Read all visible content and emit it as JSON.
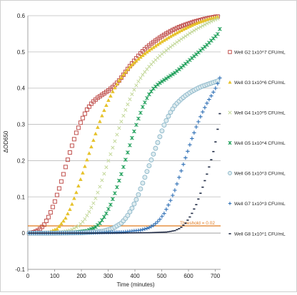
{
  "chart_data": {
    "type": "scatter",
    "title": "",
    "xlabel": "Time (minutes)",
    "ylabel": "ΔOD650",
    "xlim": [
      0,
      720
    ],
    "ylim": [
      -0.1,
      0.6
    ],
    "xticks": [
      "0",
      "100",
      "200",
      "300",
      "400",
      "500",
      "600",
      "700"
    ],
    "yticks": [
      "-0.1",
      "0",
      "0.1",
      "0.2",
      "0.3",
      "0.4",
      "0.5",
      "0.6"
    ],
    "grid": "horizontal",
    "legend_position": "right",
    "threshold": {
      "value": 0.02,
      "label": "Threshold = 0.02",
      "color": "#e07a1f"
    },
    "series": [
      {
        "name": "Well G2 1x10^7 CFU/mL",
        "color": "#c0504d",
        "marker": "square",
        "points": [
          [
            5,
            0.0
          ],
          [
            20,
            0.002
          ],
          [
            40,
            0.008
          ],
          [
            60,
            0.022
          ],
          [
            80,
            0.048
          ],
          [
            100,
            0.085
          ],
          [
            120,
            0.13
          ],
          [
            140,
            0.18
          ],
          [
            160,
            0.23
          ],
          [
            180,
            0.275
          ],
          [
            200,
            0.31
          ],
          [
            220,
            0.34
          ],
          [
            240,
            0.36
          ],
          [
            260,
            0.373
          ],
          [
            280,
            0.383
          ],
          [
            300,
            0.393
          ],
          [
            320,
            0.405
          ],
          [
            340,
            0.42
          ],
          [
            360,
            0.44
          ],
          [
            380,
            0.46
          ],
          [
            400,
            0.478
          ],
          [
            420,
            0.495
          ],
          [
            440,
            0.51
          ],
          [
            460,
            0.522
          ],
          [
            480,
            0.533
          ],
          [
            500,
            0.543
          ],
          [
            520,
            0.552
          ],
          [
            540,
            0.56
          ],
          [
            560,
            0.567
          ],
          [
            580,
            0.573
          ],
          [
            600,
            0.578
          ],
          [
            620,
            0.583
          ],
          [
            640,
            0.587
          ],
          [
            660,
            0.591
          ],
          [
            680,
            0.594
          ],
          [
            700,
            0.597
          ],
          [
            715,
            0.598
          ]
        ]
      },
      {
        "name": "Well G3 1x10^6 CFU/mL",
        "color": "#e6c229",
        "marker": "triangle",
        "points": [
          [
            5,
            0.0
          ],
          [
            40,
            0.0
          ],
          [
            80,
            0.003
          ],
          [
            110,
            0.012
          ],
          [
            140,
            0.04
          ],
          [
            160,
            0.07
          ],
          [
            180,
            0.11
          ],
          [
            200,
            0.155
          ],
          [
            220,
            0.2
          ],
          [
            240,
            0.245
          ],
          [
            260,
            0.29
          ],
          [
            280,
            0.33
          ],
          [
            300,
            0.365
          ],
          [
            320,
            0.395
          ],
          [
            340,
            0.42
          ],
          [
            360,
            0.44
          ],
          [
            380,
            0.458
          ],
          [
            400,
            0.472
          ],
          [
            420,
            0.485
          ],
          [
            440,
            0.497
          ],
          [
            460,
            0.508
          ],
          [
            480,
            0.518
          ],
          [
            500,
            0.528
          ],
          [
            520,
            0.537
          ],
          [
            540,
            0.546
          ],
          [
            560,
            0.554
          ],
          [
            580,
            0.562
          ],
          [
            600,
            0.569
          ],
          [
            620,
            0.576
          ],
          [
            640,
            0.582
          ],
          [
            660,
            0.587
          ],
          [
            680,
            0.592
          ],
          [
            700,
            0.595
          ],
          [
            715,
            0.598
          ]
        ]
      },
      {
        "name": "Well G4 1x10^5 CFU/mL",
        "color": "#c4d89b",
        "marker": "x",
        "points": [
          [
            5,
            0.0
          ],
          [
            60,
            0.0
          ],
          [
            120,
            0.002
          ],
          [
            160,
            0.008
          ],
          [
            190,
            0.02
          ],
          [
            210,
            0.035
          ],
          [
            230,
            0.06
          ],
          [
            250,
            0.09
          ],
          [
            270,
            0.13
          ],
          [
            290,
            0.175
          ],
          [
            310,
            0.22
          ],
          [
            330,
            0.265
          ],
          [
            350,
            0.31
          ],
          [
            370,
            0.35
          ],
          [
            390,
            0.385
          ],
          [
            410,
            0.415
          ],
          [
            430,
            0.438
          ],
          [
            450,
            0.457
          ],
          [
            470,
            0.473
          ],
          [
            490,
            0.487
          ],
          [
            510,
            0.5
          ],
          [
            530,
            0.512
          ],
          [
            550,
            0.523
          ],
          [
            570,
            0.534
          ],
          [
            590,
            0.544
          ],
          [
            610,
            0.554
          ],
          [
            630,
            0.563
          ],
          [
            650,
            0.571
          ],
          [
            670,
            0.579
          ],
          [
            690,
            0.586
          ],
          [
            710,
            0.592
          ]
        ]
      },
      {
        "name": "Well G5 1x10^4 CFU/mL",
        "color": "#1c9e58",
        "marker": "star",
        "points": [
          [
            5,
            0.0
          ],
          [
            80,
            0.0
          ],
          [
            160,
            0.001
          ],
          [
            220,
            0.006
          ],
          [
            250,
            0.015
          ],
          [
            270,
            0.028
          ],
          [
            290,
            0.05
          ],
          [
            310,
            0.08
          ],
          [
            330,
            0.12
          ],
          [
            350,
            0.165
          ],
          [
            370,
            0.215
          ],
          [
            390,
            0.265
          ],
          [
            410,
            0.31
          ],
          [
            430,
            0.35
          ],
          [
            450,
            0.38
          ],
          [
            470,
            0.4
          ],
          [
            490,
            0.413
          ],
          [
            510,
            0.423
          ],
          [
            530,
            0.433
          ],
          [
            550,
            0.443
          ],
          [
            570,
            0.455
          ],
          [
            590,
            0.468
          ],
          [
            610,
            0.481
          ],
          [
            630,
            0.494
          ],
          [
            650,
            0.507
          ],
          [
            670,
            0.52
          ],
          [
            690,
            0.535
          ],
          [
            710,
            0.55
          ],
          [
            718,
            0.565
          ]
        ]
      },
      {
        "name": "Well G6 1x10^3 CFU/mL",
        "color": "#8ab6c9",
        "marker": "circle",
        "points": [
          [
            5,
            0.0
          ],
          [
            100,
            0.0
          ],
          [
            200,
            0.001
          ],
          [
            280,
            0.005
          ],
          [
            320,
            0.014
          ],
          [
            350,
            0.028
          ],
          [
            370,
            0.045
          ],
          [
            390,
            0.07
          ],
          [
            410,
            0.1
          ],
          [
            430,
            0.14
          ],
          [
            450,
            0.18
          ],
          [
            470,
            0.22
          ],
          [
            490,
            0.26
          ],
          [
            510,
            0.3
          ],
          [
            530,
            0.33
          ],
          [
            550,
            0.353
          ],
          [
            570,
            0.368
          ],
          [
            590,
            0.38
          ],
          [
            610,
            0.39
          ],
          [
            630,
            0.398
          ],
          [
            650,
            0.405
          ],
          [
            670,
            0.41
          ],
          [
            690,
            0.415
          ],
          [
            710,
            0.42
          ]
        ]
      },
      {
        "name": "Well G7 1x10^3 CFU/mL",
        "color": "#2e6fb5",
        "marker": "plus",
        "points": [
          [
            5,
            0.0
          ],
          [
            120,
            0.0
          ],
          [
            240,
            0.001
          ],
          [
            360,
            0.003
          ],
          [
            420,
            0.008
          ],
          [
            450,
            0.014
          ],
          [
            470,
            0.022
          ],
          [
            490,
            0.035
          ],
          [
            510,
            0.055
          ],
          [
            530,
            0.085
          ],
          [
            550,
            0.12
          ],
          [
            570,
            0.165
          ],
          [
            590,
            0.21
          ],
          [
            610,
            0.255
          ],
          [
            630,
            0.295
          ],
          [
            650,
            0.33
          ],
          [
            670,
            0.36
          ],
          [
            690,
            0.385
          ],
          [
            705,
            0.405
          ],
          [
            718,
            0.43
          ]
        ]
      },
      {
        "name": "Well G8 1x10^1 CFU/mL",
        "color": "#1f2a44",
        "marker": "dash",
        "points": [
          [
            5,
            0.0
          ],
          [
            150,
            0.0
          ],
          [
            300,
            0.0
          ],
          [
            450,
            0.001
          ],
          [
            520,
            0.003
          ],
          [
            550,
            0.007
          ],
          [
            570,
            0.014
          ],
          [
            590,
            0.028
          ],
          [
            610,
            0.05
          ],
          [
            630,
            0.08
          ],
          [
            650,
            0.12
          ],
          [
            670,
            0.165
          ],
          [
            690,
            0.215
          ],
          [
            705,
            0.265
          ],
          [
            718,
            0.335
          ]
        ]
      }
    ]
  }
}
